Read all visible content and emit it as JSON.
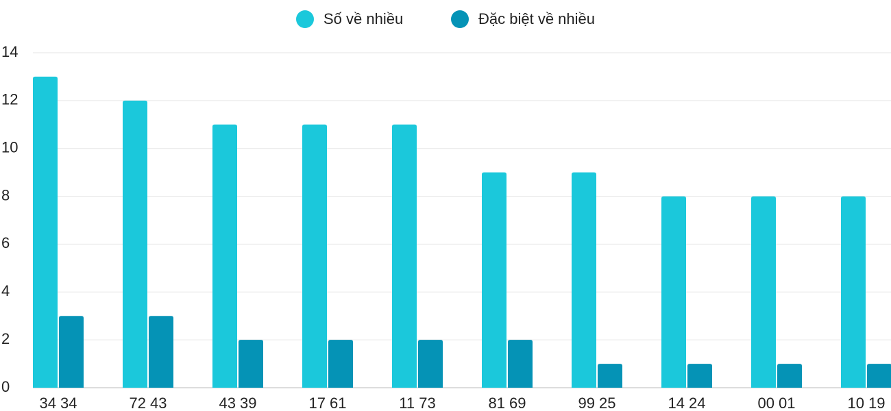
{
  "chart_data": {
    "type": "bar",
    "categories": [
      "34 34",
      "72 43",
      "43 39",
      "17 61",
      "11 73",
      "81 69",
      "99 25",
      "14 24",
      "00 01",
      "10 19"
    ],
    "series": [
      {
        "name": "Số về nhiều",
        "color": "#1bc8db",
        "values": [
          13,
          12,
          11,
          11,
          11,
          9,
          9,
          8,
          8,
          8
        ]
      },
      {
        "name": "Đặc biệt về nhiều",
        "color": "#0593b6",
        "values": [
          3,
          3,
          2,
          2,
          2,
          2,
          1,
          1,
          1,
          1
        ]
      }
    ],
    "ylim": [
      0,
      14
    ],
    "yticks": [
      0,
      2,
      4,
      6,
      8,
      10,
      12,
      14
    ],
    "grid": true,
    "legend": "top"
  }
}
